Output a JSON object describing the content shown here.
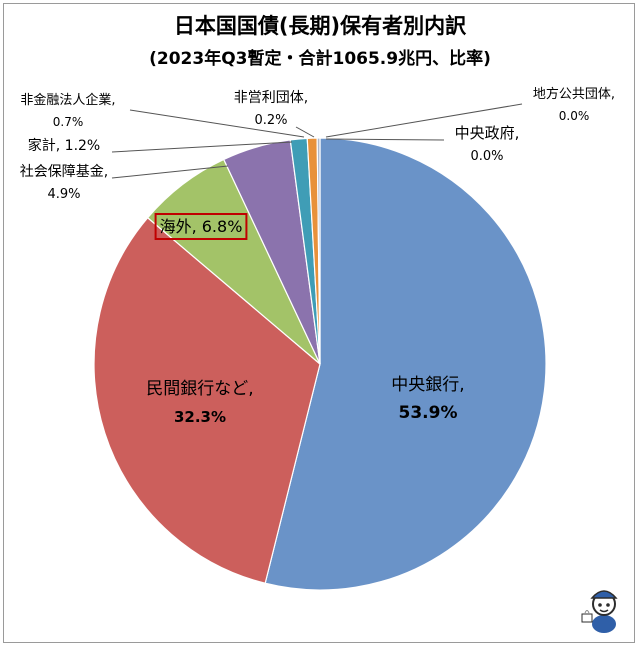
{
  "chart_data": {
    "type": "pie",
    "title": "日本国国債(長期)保有者別内訳",
    "subtitle": "(2023年Q3暫定・合計1065.9兆円、比率)",
    "slices": [
      {
        "name": "中央銀行",
        "value": 53.9,
        "name_text": "中央銀行,",
        "value_text": "53.9%",
        "color": "#6a93c8"
      },
      {
        "name": "民間銀行など",
        "value": 32.3,
        "name_text": "民間銀行など,",
        "value_text": "32.3%",
        "color": "#cc5f5c"
      },
      {
        "name": "海外",
        "value": 6.8,
        "name_text": "海外, 6.8%",
        "value_text": "",
        "color": "#a3c368"
      },
      {
        "name": "社会保障基金",
        "value": 4.9,
        "name_text": "社会保障基金,",
        "value_text": "4.9%",
        "color": "#8b73ad"
      },
      {
        "name": "家計",
        "value": 1.2,
        "name_text": "家計, 1.2%",
        "value_text": "",
        "color": "#3f9db6"
      },
      {
        "name": "非金融法人企業",
        "value": 0.7,
        "name_text": "非金融法人企業,",
        "value_text": "0.7%",
        "color": "#e8913a"
      },
      {
        "name": "非営利団体",
        "value": 0.2,
        "name_text": "非営利団体,",
        "value_text": "0.2%",
        "color": "#aeb8cc"
      },
      {
        "name": "地方公共団体",
        "value": 0.0,
        "name_text": "地方公共団体,",
        "value_text": "0.0%",
        "color": "#d6a7a6"
      },
      {
        "name": "中央政府",
        "value": 0.0,
        "name_text": "中央政府,",
        "value_text": "0.0%",
        "color": "#c6d5a8"
      }
    ],
    "highlight": "海外",
    "highlight_color": "#c00000",
    "legend": "none"
  }
}
